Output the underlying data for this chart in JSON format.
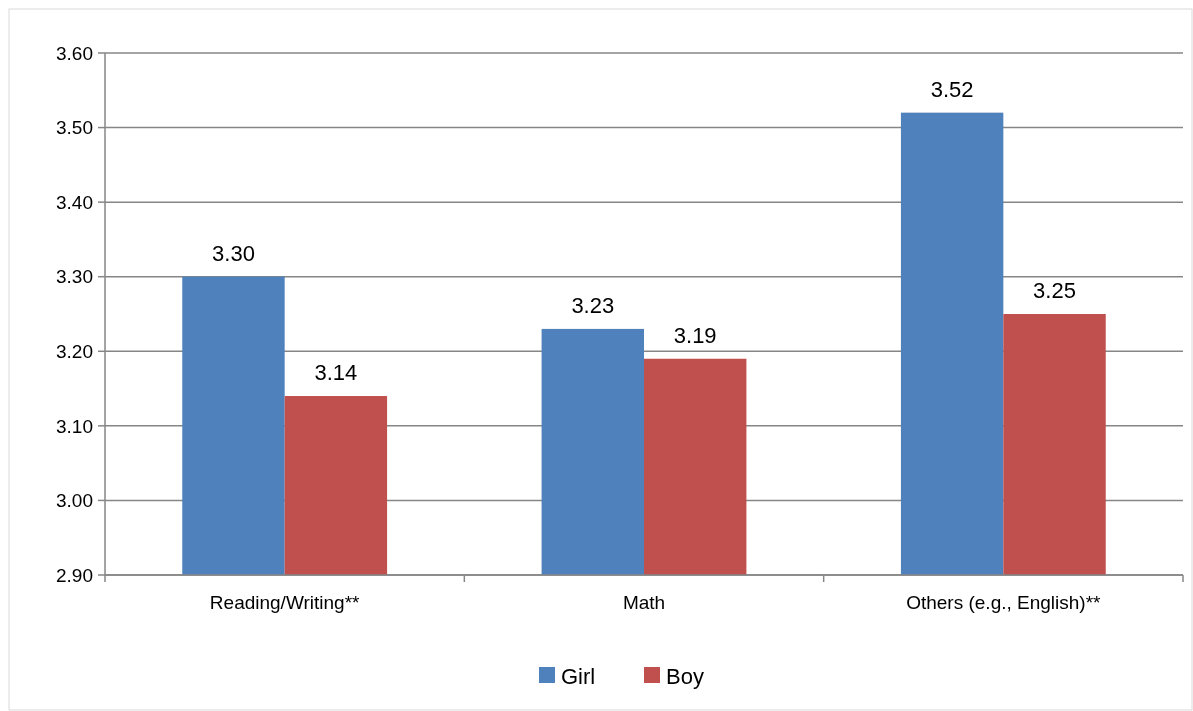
{
  "chart_data": {
    "type": "bar",
    "categories": [
      "Reading/Writing**",
      "Math",
      "Others (e.g., English)**"
    ],
    "series": [
      {
        "name": "Girl",
        "color": "#4f81bd",
        "values": [
          3.3,
          3.23,
          3.52
        ]
      },
      {
        "name": "Boy",
        "color": "#c0504d",
        "values": [
          3.14,
          3.19,
          3.25
        ]
      }
    ],
    "ylim": [
      2.9,
      3.6
    ],
    "yticks": [
      {
        "value": 2.9,
        "label": "2.90"
      },
      {
        "value": 3.0,
        "label": "3.00"
      },
      {
        "value": 3.1,
        "label": "3.10"
      },
      {
        "value": 3.2,
        "label": "3.20"
      },
      {
        "value": 3.3,
        "label": "3.30"
      },
      {
        "value": 3.4,
        "label": "3.40"
      },
      {
        "value": 3.5,
        "label": "3.50"
      },
      {
        "value": 3.6,
        "label": "3.60"
      }
    ],
    "grid": "y",
    "legend": "bottom",
    "value_labels": [
      [
        "3.30",
        "3.23",
        "3.52"
      ],
      [
        "3.14",
        "3.19",
        "3.25"
      ]
    ]
  }
}
